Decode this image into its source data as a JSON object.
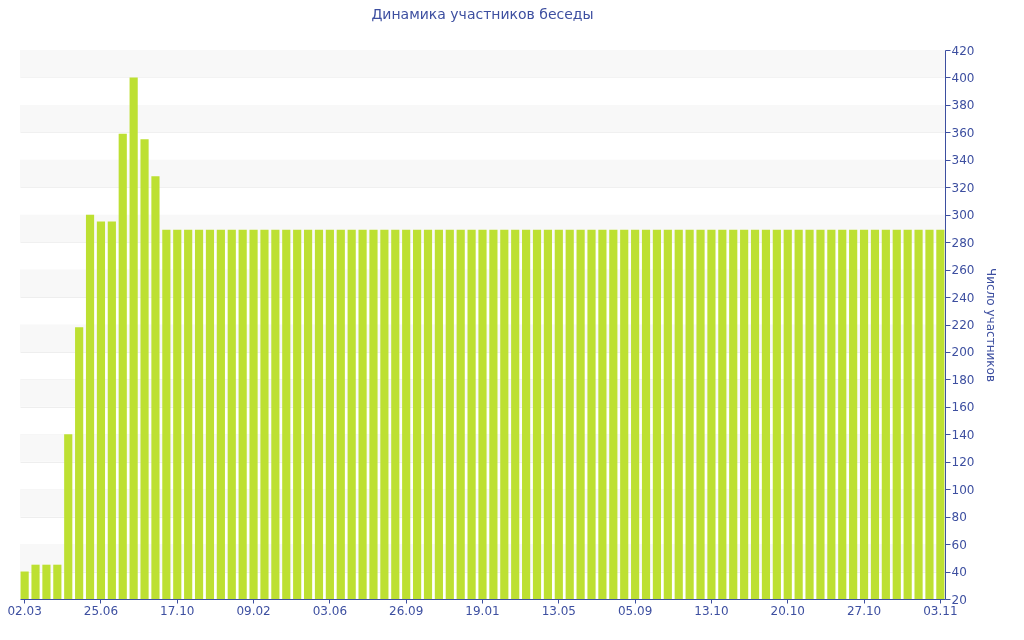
{
  "chart_data": {
    "type": "bar",
    "title": "Динамика участников беседы",
    "ylabel": "Число участников",
    "categories": [
      "02.03",
      null,
      null,
      null,
      null,
      null,
      null,
      "25.06",
      null,
      null,
      null,
      null,
      null,
      null,
      "17.10",
      null,
      null,
      null,
      null,
      null,
      null,
      "09.02",
      null,
      null,
      null,
      null,
      null,
      null,
      "03.06",
      null,
      null,
      null,
      null,
      null,
      null,
      "26.09",
      null,
      null,
      null,
      null,
      null,
      null,
      "19.01",
      null,
      null,
      null,
      null,
      null,
      null,
      "13.05",
      null,
      null,
      null,
      null,
      null,
      null,
      "05.09",
      null,
      null,
      null,
      null,
      null,
      null,
      "13.10",
      null,
      null,
      null,
      null,
      null,
      null,
      "20.10",
      null,
      null,
      null,
      null,
      null,
      null,
      "27.10",
      null,
      null,
      null,
      null,
      null,
      null,
      "03.11"
    ],
    "values": [
      40,
      45,
      45,
      45,
      140,
      218,
      300,
      295,
      295,
      359,
      400,
      355,
      328,
      289,
      289,
      289,
      289,
      289,
      289,
      289,
      289,
      289,
      289,
      289,
      289,
      289,
      289,
      289,
      289,
      289,
      289,
      289,
      289,
      289,
      289,
      289,
      289,
      289,
      289,
      289,
      289,
      289,
      289,
      289,
      289,
      289,
      289,
      289,
      289,
      289,
      289,
      289,
      289,
      289,
      289,
      289,
      289,
      289,
      289,
      289,
      289,
      289,
      289,
      289,
      289,
      289,
      289,
      289,
      289,
      289,
      289,
      289,
      289,
      289,
      289,
      289,
      289,
      289,
      289,
      289,
      289,
      289,
      289,
      289,
      289
    ],
    "color": "#bde032",
    "ylim": [
      20,
      420
    ],
    "yticks": [
      20,
      40,
      60,
      80,
      100,
      120,
      140,
      160,
      180,
      200,
      220,
      240,
      260,
      280,
      300,
      320,
      340,
      360,
      380,
      400,
      420
    ],
    "grid": "y"
  }
}
